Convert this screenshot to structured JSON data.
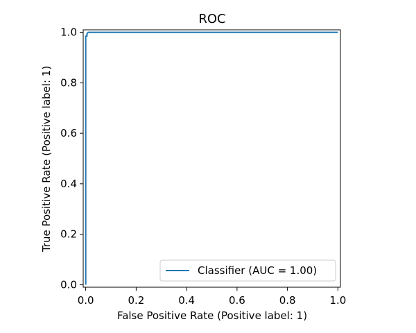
{
  "chart_data": {
    "type": "line",
    "title": "ROC",
    "xlabel": "False Positive Rate (Positive label: 1)",
    "ylabel": "True Positive Rate (Positive label: 1)",
    "xlim": [
      -0.01,
      1.01
    ],
    "ylim": [
      -0.01,
      1.01
    ],
    "xticks": [
      0.0,
      0.2,
      0.4,
      0.6,
      0.8,
      1.0
    ],
    "xtick_labels": [
      "0.0",
      "0.2",
      "0.4",
      "0.6",
      "0.8",
      "1.0"
    ],
    "yticks": [
      0.0,
      0.2,
      0.4,
      0.6,
      0.8,
      1.0
    ],
    "ytick_labels": [
      "0.0",
      "0.2",
      "0.4",
      "0.6",
      "0.8",
      "1.0"
    ],
    "grid": false,
    "legend_position": "lower-right",
    "series": [
      {
        "name": "Classifier (AUC = 1.00)",
        "color": "#1f77b4",
        "x": [
          0.0,
          0.0,
          0.005,
          0.005,
          0.01,
          1.0
        ],
        "y": [
          0.0,
          0.985,
          0.985,
          0.995,
          1.0,
          1.0
        ]
      }
    ]
  }
}
